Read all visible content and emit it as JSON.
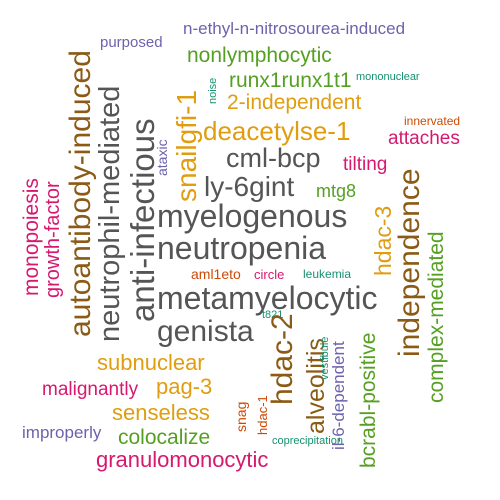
{
  "colors": {
    "dark_gray": "#555555",
    "orange": "#e09d0f",
    "green": "#55a022",
    "brown": "#8b5a14",
    "magenta": "#d6186f",
    "purple": "#6c63ad",
    "teal": "#16916f",
    "red_orange": "#cc4a06"
  },
  "words": [
    {
      "text": "n-ethyl-n-nitrosourea-induced",
      "color": "purple"
    },
    {
      "text": "purposed",
      "color": "purple"
    },
    {
      "text": "nonlymphocytic",
      "color": "green"
    },
    {
      "text": "runx1runx1t1",
      "color": "green"
    },
    {
      "text": "mononuclear",
      "color": "teal"
    },
    {
      "text": "noise",
      "color": "teal"
    },
    {
      "text": "2-independent",
      "color": "orange"
    },
    {
      "text": "innervated",
      "color": "red_orange"
    },
    {
      "text": "deacetylse-1",
      "color": "orange"
    },
    {
      "text": "attaches",
      "color": "magenta"
    },
    {
      "text": "ataxic",
      "color": "purple"
    },
    {
      "text": "cml-bcp",
      "color": "dark_gray"
    },
    {
      "text": "tilting",
      "color": "magenta"
    },
    {
      "text": "ly-6gint",
      "color": "dark_gray"
    },
    {
      "text": "mtg8",
      "color": "green"
    },
    {
      "text": "myelogenous",
      "color": "dark_gray"
    },
    {
      "text": "neutropenia",
      "color": "dark_gray"
    },
    {
      "text": "aml1eto",
      "color": "red_orange"
    },
    {
      "text": "circle",
      "color": "magenta"
    },
    {
      "text": "leukemia",
      "color": "teal"
    },
    {
      "text": "metamyelocytic",
      "color": "dark_gray"
    },
    {
      "text": "genista",
      "color": "dark_gray"
    },
    {
      "text": "t821",
      "color": "teal"
    },
    {
      "text": "subnuclear",
      "color": "orange"
    },
    {
      "text": "pag-3",
      "color": "orange"
    },
    {
      "text": "malignantly",
      "color": "magenta"
    },
    {
      "text": "senseless",
      "color": "orange"
    },
    {
      "text": "improperly",
      "color": "purple"
    },
    {
      "text": "colocalize",
      "color": "green"
    },
    {
      "text": "coprecipitation",
      "color": "teal"
    },
    {
      "text": "granulomonocytic",
      "color": "magenta"
    },
    {
      "text": "autoantibody-induced",
      "color": "brown"
    },
    {
      "text": "neutrophil-mediated",
      "color": "dark_gray"
    },
    {
      "text": "anti-infectious",
      "color": "dark_gray"
    },
    {
      "text": "snailgfi-1",
      "color": "orange"
    },
    {
      "text": "hdac-3",
      "color": "orange"
    },
    {
      "text": "independence",
      "color": "brown"
    },
    {
      "text": "complex-mediated",
      "color": "green"
    },
    {
      "text": "monopoiesis",
      "color": "magenta"
    },
    {
      "text": "growth-factor",
      "color": "magenta"
    },
    {
      "text": "hdac-2",
      "color": "brown"
    },
    {
      "text": "alveolitis",
      "color": "brown"
    },
    {
      "text": "vestibule",
      "color": "teal"
    },
    {
      "text": "il-6-dependent",
      "color": "purple"
    },
    {
      "text": "bcrabl-positive",
      "color": "green"
    },
    {
      "text": "hdac-1",
      "color": "red_orange"
    },
    {
      "text": "snag",
      "color": "red_orange"
    }
  ]
}
